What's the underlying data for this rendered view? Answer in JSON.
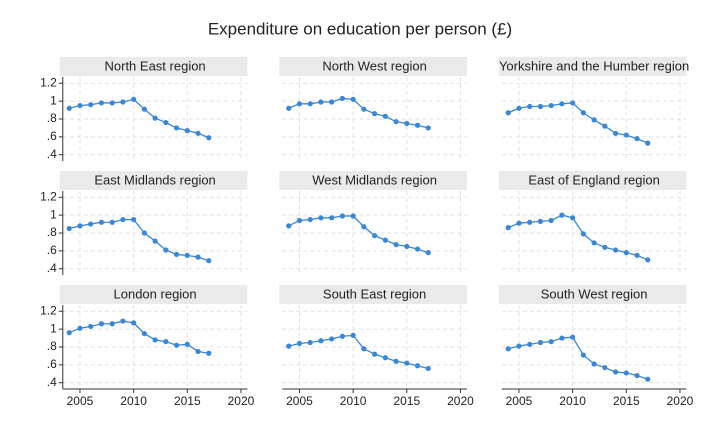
{
  "title": "Expenditure on education per person (£)",
  "xlim": [
    2003.4,
    2020.6
  ],
  "xticks": [
    2005,
    2010,
    2015,
    2020
  ],
  "ylim": [
    0.33,
    1.27
  ],
  "yticks": [
    {
      "value": 0.4,
      "label": ".4"
    },
    {
      "value": 0.6,
      "label": ".6"
    },
    {
      "value": 0.8,
      "label": ".8"
    },
    1,
    1.2
  ],
  "grid": true,
  "chart_data": [
    {
      "type": "line",
      "title": "North East region",
      "color": "#3a87d6",
      "x": [
        2004,
        2005,
        2006,
        2007,
        2008,
        2009,
        2010,
        2011,
        2012,
        2013,
        2014,
        2015,
        2016,
        2017
      ],
      "values": [
        0.92,
        0.95,
        0.96,
        0.98,
        0.98,
        0.99,
        1.02,
        0.91,
        0.81,
        0.76,
        0.7,
        0.67,
        0.64,
        0.59
      ]
    },
    {
      "type": "line",
      "title": "North West region",
      "color": "#3a87d6",
      "x": [
        2004,
        2005,
        2006,
        2007,
        2008,
        2009,
        2010,
        2011,
        2012,
        2013,
        2014,
        2015,
        2016,
        2017
      ],
      "values": [
        0.92,
        0.97,
        0.97,
        0.99,
        0.99,
        1.03,
        1.02,
        0.91,
        0.86,
        0.83,
        0.77,
        0.75,
        0.73,
        0.7
      ]
    },
    {
      "type": "line",
      "title": "Yorkshire and the Humber region",
      "color": "#3a87d6",
      "x": [
        2004,
        2005,
        2006,
        2007,
        2008,
        2009,
        2010,
        2011,
        2012,
        2013,
        2014,
        2015,
        2016,
        2017
      ],
      "values": [
        0.87,
        0.92,
        0.94,
        0.94,
        0.95,
        0.97,
        0.98,
        0.87,
        0.79,
        0.72,
        0.64,
        0.62,
        0.58,
        0.53
      ]
    },
    {
      "type": "line",
      "title": "East Midlands region",
      "color": "#3a87d6",
      "x": [
        2004,
        2005,
        2006,
        2007,
        2008,
        2009,
        2010,
        2011,
        2012,
        2013,
        2014,
        2015,
        2016,
        2017
      ],
      "values": [
        0.85,
        0.88,
        0.9,
        0.92,
        0.92,
        0.95,
        0.95,
        0.8,
        0.71,
        0.61,
        0.56,
        0.55,
        0.53,
        0.49
      ]
    },
    {
      "type": "line",
      "title": "West Midlands region",
      "color": "#3a87d6",
      "x": [
        2004,
        2005,
        2006,
        2007,
        2008,
        2009,
        2010,
        2011,
        2012,
        2013,
        2014,
        2015,
        2016,
        2017
      ],
      "values": [
        0.88,
        0.94,
        0.95,
        0.97,
        0.97,
        0.99,
        0.99,
        0.87,
        0.77,
        0.72,
        0.67,
        0.65,
        0.62,
        0.58
      ]
    },
    {
      "type": "line",
      "title": "East of England region",
      "color": "#3a87d6",
      "x": [
        2004,
        2005,
        2006,
        2007,
        2008,
        2009,
        2010,
        2011,
        2012,
        2013,
        2014,
        2015,
        2016,
        2017
      ],
      "values": [
        0.86,
        0.91,
        0.92,
        0.93,
        0.94,
        1.0,
        0.97,
        0.79,
        0.69,
        0.64,
        0.61,
        0.58,
        0.55,
        0.5
      ]
    },
    {
      "type": "line",
      "title": "London region",
      "color": "#3a87d6",
      "x": [
        2004,
        2005,
        2006,
        2007,
        2008,
        2009,
        2010,
        2011,
        2012,
        2013,
        2014,
        2015,
        2016,
        2017
      ],
      "values": [
        0.96,
        1.01,
        1.03,
        1.06,
        1.06,
        1.09,
        1.07,
        0.95,
        0.88,
        0.86,
        0.82,
        0.83,
        0.75,
        0.73
      ]
    },
    {
      "type": "line",
      "title": "South East region",
      "color": "#3a87d6",
      "x": [
        2004,
        2005,
        2006,
        2007,
        2008,
        2009,
        2010,
        2011,
        2012,
        2013,
        2014,
        2015,
        2016,
        2017
      ],
      "values": [
        0.81,
        0.84,
        0.85,
        0.87,
        0.89,
        0.92,
        0.93,
        0.78,
        0.72,
        0.68,
        0.64,
        0.62,
        0.59,
        0.56
      ]
    },
    {
      "type": "line",
      "title": "South West region",
      "color": "#3a87d6",
      "x": [
        2004,
        2005,
        2006,
        2007,
        2008,
        2009,
        2010,
        2011,
        2012,
        2013,
        2014,
        2015,
        2016,
        2017
      ],
      "values": [
        0.78,
        0.81,
        0.83,
        0.85,
        0.86,
        0.9,
        0.91,
        0.71,
        0.61,
        0.57,
        0.52,
        0.51,
        0.48,
        0.44
      ]
    }
  ]
}
